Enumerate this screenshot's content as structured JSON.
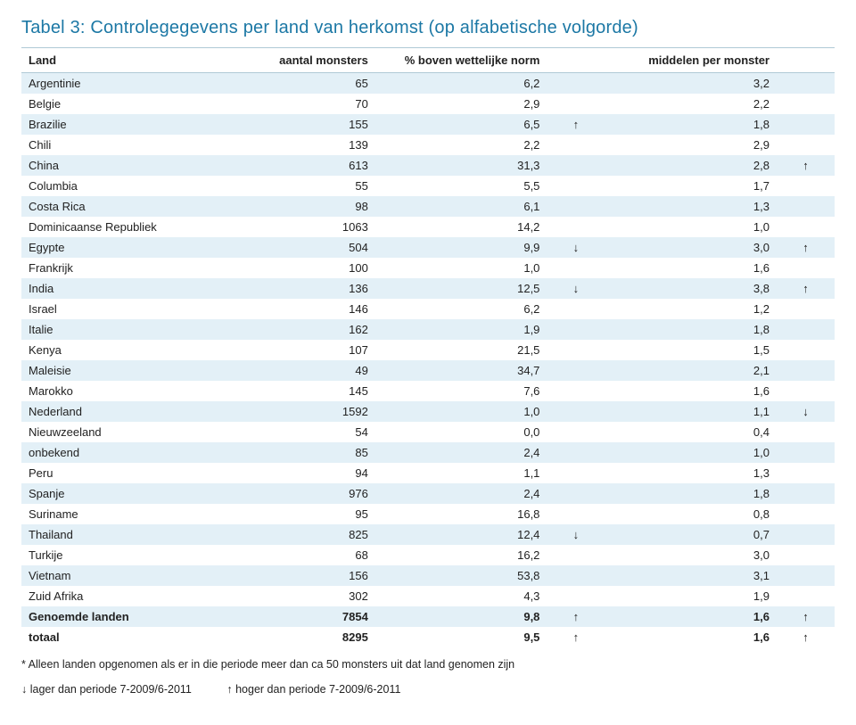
{
  "title": "Tabel 3: Controlegegevens per land van herkomst (op alfabetische volgorde)",
  "columns": {
    "land": "Land",
    "monsters": "aantal monsters",
    "pct": "% boven wettelijke norm",
    "middel": "middelen per monster"
  },
  "rows": [
    {
      "land": "Argentinie",
      "monsters": "65",
      "pct": "6,2",
      "arr1": "",
      "middel": "3,2",
      "arr2": ""
    },
    {
      "land": "Belgie",
      "monsters": "70",
      "pct": "2,9",
      "arr1": "",
      "middel": "2,2",
      "arr2": ""
    },
    {
      "land": "Brazilie",
      "monsters": "155",
      "pct": "6,5",
      "arr1": "↑",
      "middel": "1,8",
      "arr2": ""
    },
    {
      "land": "Chili",
      "monsters": "139",
      "pct": "2,2",
      "arr1": "",
      "middel": "2,9",
      "arr2": ""
    },
    {
      "land": "China",
      "monsters": "613",
      "pct": "31,3",
      "arr1": "",
      "middel": "2,8",
      "arr2": "↑"
    },
    {
      "land": "Columbia",
      "monsters": "55",
      "pct": "5,5",
      "arr1": "",
      "middel": "1,7",
      "arr2": ""
    },
    {
      "land": "Costa Rica",
      "monsters": "98",
      "pct": "6,1",
      "arr1": "",
      "middel": "1,3",
      "arr2": ""
    },
    {
      "land": "Dominicaanse Republiek",
      "monsters": "1063",
      "pct": "14,2",
      "arr1": "",
      "middel": "1,0",
      "arr2": ""
    },
    {
      "land": "Egypte",
      "monsters": "504",
      "pct": "9,9",
      "arr1": "↓",
      "middel": "3,0",
      "arr2": "↑"
    },
    {
      "land": "Frankrijk",
      "monsters": "100",
      "pct": "1,0",
      "arr1": "",
      "middel": "1,6",
      "arr2": ""
    },
    {
      "land": "India",
      "monsters": "136",
      "pct": "12,5",
      "arr1": "↓",
      "middel": "3,8",
      "arr2": "↑"
    },
    {
      "land": "Israel",
      "monsters": "146",
      "pct": "6,2",
      "arr1": "",
      "middel": "1,2",
      "arr2": ""
    },
    {
      "land": "Italie",
      "monsters": "162",
      "pct": "1,9",
      "arr1": "",
      "middel": "1,8",
      "arr2": ""
    },
    {
      "land": "Kenya",
      "monsters": "107",
      "pct": "21,5",
      "arr1": "",
      "middel": "1,5",
      "arr2": ""
    },
    {
      "land": "Maleisie",
      "monsters": "49",
      "pct": "34,7",
      "arr1": "",
      "middel": "2,1",
      "arr2": ""
    },
    {
      "land": "Marokko",
      "monsters": "145",
      "pct": "7,6",
      "arr1": "",
      "middel": "1,6",
      "arr2": ""
    },
    {
      "land": "Nederland",
      "monsters": "1592",
      "pct": "1,0",
      "arr1": "",
      "middel": "1,1",
      "arr2": "↓"
    },
    {
      "land": "Nieuwzeeland",
      "monsters": "54",
      "pct": "0,0",
      "arr1": "",
      "middel": "0,4",
      "arr2": ""
    },
    {
      "land": "onbekend",
      "monsters": "85",
      "pct": "2,4",
      "arr1": "",
      "middel": "1,0",
      "arr2": ""
    },
    {
      "land": "Peru",
      "monsters": "94",
      "pct": "1,1",
      "arr1": "",
      "middel": "1,3",
      "arr2": ""
    },
    {
      "land": "Spanje",
      "monsters": "976",
      "pct": "2,4",
      "arr1": "",
      "middel": "1,8",
      "arr2": ""
    },
    {
      "land": "Suriname",
      "monsters": "95",
      "pct": "16,8",
      "arr1": "",
      "middel": "0,8",
      "arr2": ""
    },
    {
      "land": "Thailand",
      "monsters": "825",
      "pct": "12,4",
      "arr1": "↓",
      "middel": "0,7",
      "arr2": ""
    },
    {
      "land": "Turkije",
      "monsters": "68",
      "pct": "16,2",
      "arr1": "",
      "middel": "3,0",
      "arr2": ""
    },
    {
      "land": "Vietnam",
      "monsters": "156",
      "pct": "53,8",
      "arr1": "",
      "middel": "3,1",
      "arr2": ""
    },
    {
      "land": "Zuid Afrika",
      "monsters": "302",
      "pct": "4,3",
      "arr1": "",
      "middel": "1,9",
      "arr2": ""
    },
    {
      "land": "Genoemde landen",
      "monsters": "7854",
      "pct": "9,8",
      "arr1": "↑",
      "middel": "1,6",
      "arr2": "↑",
      "bold": true
    },
    {
      "land": "totaal",
      "monsters": "8295",
      "pct": "9,5",
      "arr1": "↑",
      "middel": "1,6",
      "arr2": "↑",
      "bold": true
    }
  ],
  "footnote": "* Alleen landen opgenomen als er in die periode meer dan ca 50 monsters uit dat land genomen zijn",
  "legend": {
    "down": "↓ lager dan periode 7-2009/6-2011",
    "up": "↑ hoger dan periode 7-2009/6-2011"
  },
  "colors": {
    "title": "#1c78a5",
    "stripe": "#e3f0f7",
    "border": "#b0c9d6",
    "bg": "#ffffff"
  }
}
